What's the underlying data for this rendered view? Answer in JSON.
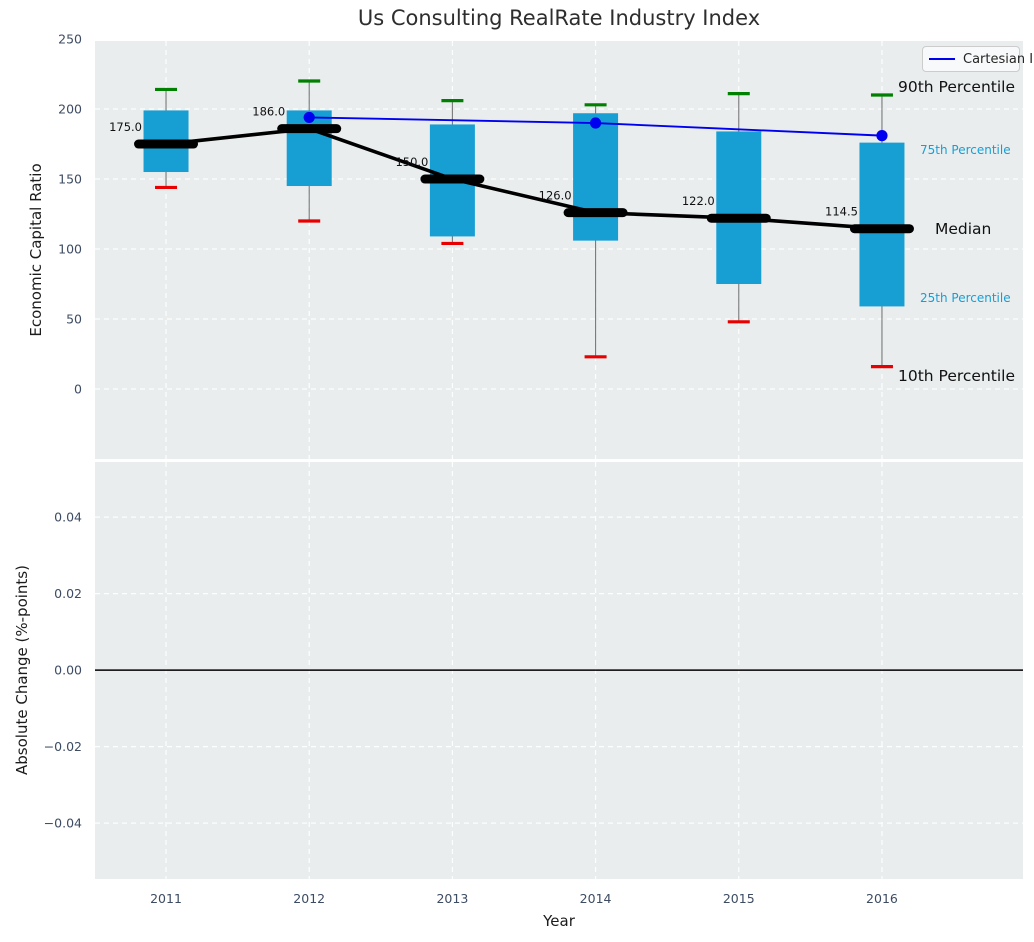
{
  "title": "Us Consulting RealRate Industry Index",
  "legend": {
    "label": "Cartesian Inc"
  },
  "colors": {
    "box_fill": "#179fd4",
    "whisker": "#787878",
    "cap_high": "#008000",
    "cap_low": "#e80000",
    "median_line": "#000000",
    "company_line": "#0000f0",
    "panel_bg": "#e9edee",
    "grid": "#ffffff",
    "tick_text": "#3d4c63",
    "zero_line": "#000000"
  },
  "chart_data": {
    "type": "boxplot+line",
    "xlabel": "Year",
    "xlim": [
      2010.504,
      2016.985
    ],
    "categories": [
      "2011",
      "2012",
      "2013",
      "2014",
      "2015",
      "2016"
    ],
    "years": [
      2011,
      2012,
      2013,
      2014,
      2015,
      2016
    ],
    "panels": [
      {
        "ylabel": "Economic Capital Ratio",
        "ylim": [
          -50,
          248.6
        ],
        "yticks": [
          0,
          50,
          100,
          150,
          200,
          250
        ],
        "grid": "dashed-white",
        "boxes": [
          {
            "year": 2011,
            "p10": 144,
            "p25": 155,
            "median": 175,
            "p75": 199,
            "p90": 214,
            "label": "175.0"
          },
          {
            "year": 2012,
            "p10": 120,
            "p25": 145,
            "median": 186,
            "p75": 199,
            "p90": 220,
            "label": "186.0"
          },
          {
            "year": 2013,
            "p10": 104,
            "p25": 109,
            "median": 150,
            "p75": 189,
            "p90": 206,
            "label": "150.0"
          },
          {
            "year": 2014,
            "p10": 23,
            "p25": 106,
            "median": 126,
            "p75": 197,
            "p90": 203,
            "label": "126.0"
          },
          {
            "year": 2015,
            "p10": 48,
            "p25": 75,
            "median": 122,
            "p75": 184,
            "p90": 211,
            "label": "122.0"
          },
          {
            "year": 2016,
            "p10": 16,
            "p25": 59,
            "median": 114.5,
            "p75": 176,
            "p90": 210,
            "label": "114.5"
          }
        ],
        "median_trend": {
          "x": [
            2011,
            2012,
            2013,
            2014,
            2015,
            2016
          ],
          "y": [
            175,
            186,
            150,
            126,
            122,
            114.5
          ]
        },
        "series": [
          {
            "name": "Cartesian Inc",
            "x": [
              2012,
              2014,
              2016
            ],
            "y": [
              194,
              190,
              181
            ]
          }
        ],
        "side_labels": [
          {
            "text": "90th Percentile",
            "value": 216,
            "style": "strong"
          },
          {
            "text": "75th Percentile",
            "value": 171,
            "style": "cyan"
          },
          {
            "text": "Median",
            "value": 114,
            "style": "strong"
          },
          {
            "text": "25th Percentile",
            "value": 65,
            "style": "cyan"
          },
          {
            "text": "10th Percentile",
            "value": 9,
            "style": "strong"
          }
        ]
      },
      {
        "ylabel": "Absolute Change (%-points)",
        "ylim": [
          -0.0546,
          0.0544
        ],
        "yticks": [
          0.04,
          0.02,
          0,
          -0.02,
          -0.04
        ],
        "grid": "dashed-white",
        "zero_line": 0,
        "bars": []
      }
    ]
  }
}
